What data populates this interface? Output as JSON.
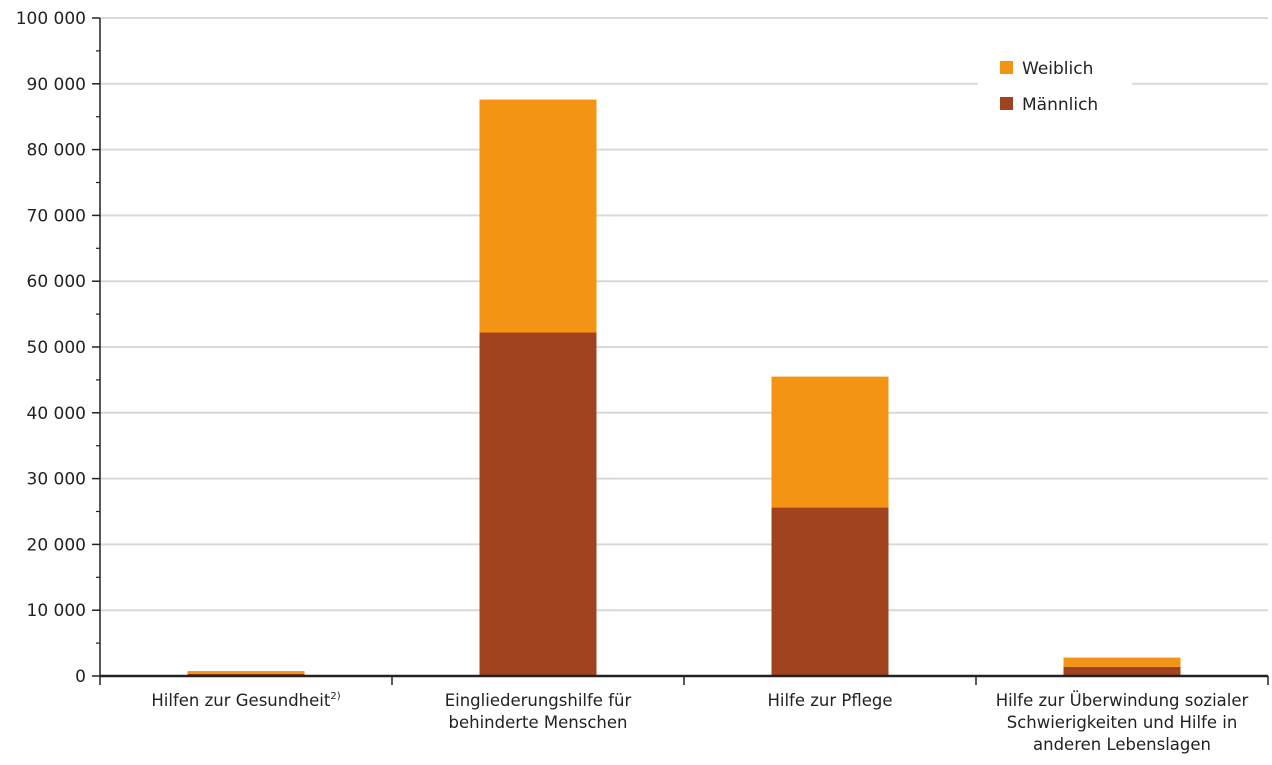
{
  "chart_data": {
    "type": "bar",
    "stacked": true,
    "categories": [
      [
        "Hilfen zur Gesundheit"
      ],
      [
        "Eingliederungshilfe für",
        "behinderte Menschen"
      ],
      [
        "Hilfe zur Pflege"
      ],
      [
        "Hilfe zur Überwindung sozialer",
        "Schwierigkeiten und Hilfe in",
        "anderen Lebenslagen"
      ]
    ],
    "category_footnotes": [
      "2)",
      "",
      "",
      ""
    ],
    "series": [
      {
        "name": "Männlich",
        "color": "#A0431E",
        "values": [
          350,
          52200,
          25600,
          1400
        ]
      },
      {
        "name": "Weiblich",
        "color": "#F39414",
        "values": [
          400,
          35400,
          19900,
          1400
        ]
      }
    ],
    "legend_order": [
      "Weiblich",
      "Männlich"
    ],
    "legend_position": "top-right",
    "ylim": [
      0,
      100000
    ],
    "yticks": [
      0,
      10000,
      20000,
      30000,
      40000,
      50000,
      60000,
      70000,
      80000,
      90000,
      100000
    ],
    "ytick_labels": [
      "0",
      "10 000",
      "20 000",
      "30 000",
      "40 000",
      "50 000",
      "60 000",
      "70 000",
      "80 000",
      "90 000",
      "100 000"
    ],
    "grid": true,
    "colors": {
      "grid": "#D9D9D9",
      "axis": "#222222"
    }
  }
}
